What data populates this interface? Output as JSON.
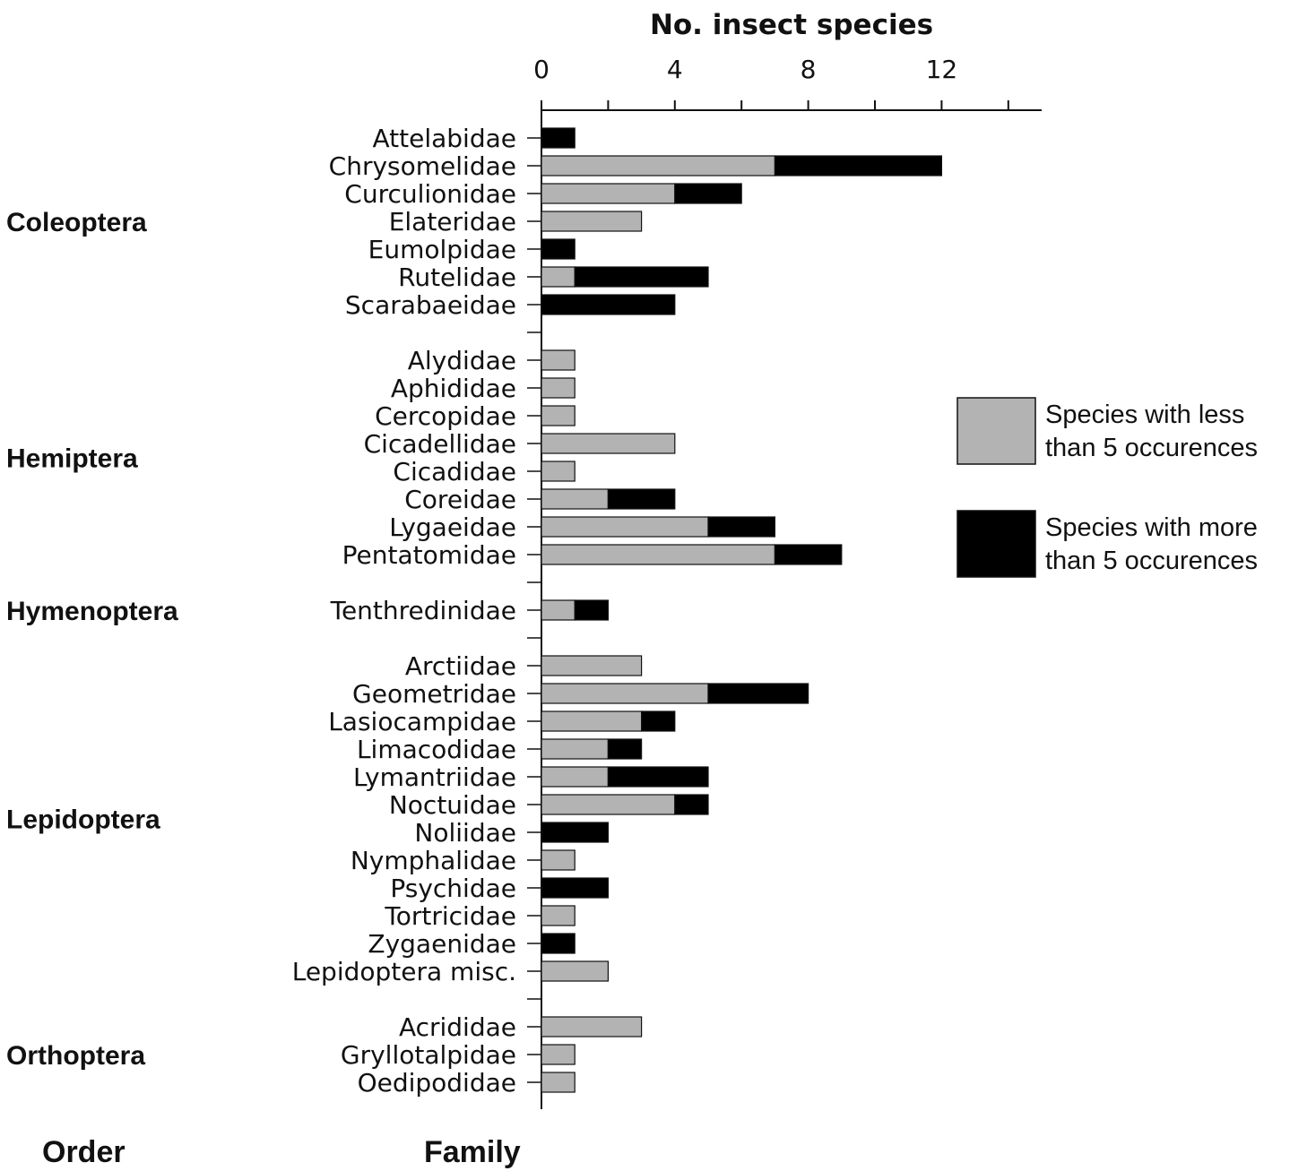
{
  "chart_data": {
    "type": "bar",
    "orientation": "horizontal",
    "stacked": true,
    "title": "No. insect species",
    "xticks": [
      0,
      4,
      8,
      12
    ],
    "xlim": [
      0,
      15
    ],
    "legend_position": "right",
    "footer_labels": {
      "order": "Order",
      "family": "Family"
    },
    "series": [
      {
        "name": "Species with less than 5 occurences",
        "legend_lines": [
          "Species with less",
          "than 5 occurences"
        ],
        "color": "#b3b3b3"
      },
      {
        "name": "Species with more than 5 occurences",
        "legend_lines": [
          "Species with more",
          "than 5 occurences"
        ],
        "color": "#000000"
      }
    ],
    "groups": [
      {
        "order": "Coleoptera",
        "families": [
          {
            "name": "Attelabidae",
            "less": 0,
            "more": 1
          },
          {
            "name": "Chrysomelidae",
            "less": 7,
            "more": 5
          },
          {
            "name": "Curculionidae",
            "less": 4,
            "more": 2
          },
          {
            "name": "Elateridae",
            "less": 3,
            "more": 0
          },
          {
            "name": "Eumolpidae",
            "less": 0,
            "more": 1
          },
          {
            "name": "Rutelidae",
            "less": 1,
            "more": 4
          },
          {
            "name": "Scarabaeidae",
            "less": 0,
            "more": 4
          }
        ]
      },
      {
        "order": "Hemiptera",
        "families": [
          {
            "name": "Alydidae",
            "less": 1,
            "more": 0
          },
          {
            "name": "Aphididae",
            "less": 1,
            "more": 0
          },
          {
            "name": "Cercopidae",
            "less": 1,
            "more": 0
          },
          {
            "name": "Cicadellidae",
            "less": 4,
            "more": 0
          },
          {
            "name": "Cicadidae",
            "less": 1,
            "more": 0
          },
          {
            "name": "Coreidae",
            "less": 2,
            "more": 2
          },
          {
            "name": "Lygaeidae",
            "less": 5,
            "more": 2
          },
          {
            "name": "Pentatomidae",
            "less": 7,
            "more": 2
          }
        ]
      },
      {
        "order": "Hymenoptera",
        "families": [
          {
            "name": "Tenthredinidae",
            "less": 1,
            "more": 1
          }
        ]
      },
      {
        "order": "Lepidoptera",
        "families": [
          {
            "name": "Arctiidae",
            "less": 3,
            "more": 0
          },
          {
            "name": "Geometridae",
            "less": 5,
            "more": 3
          },
          {
            "name": "Lasiocampidae",
            "less": 3,
            "more": 1
          },
          {
            "name": "Limacodidae",
            "less": 2,
            "more": 1
          },
          {
            "name": "Lymantriidae",
            "less": 2,
            "more": 3
          },
          {
            "name": "Noctuidae",
            "less": 4,
            "more": 1
          },
          {
            "name": "Noliidae",
            "less": 0,
            "more": 2
          },
          {
            "name": "Nymphalidae",
            "less": 1,
            "more": 0
          },
          {
            "name": "Psychidae",
            "less": 0,
            "more": 2
          },
          {
            "name": "Tortricidae",
            "less": 1,
            "more": 0
          },
          {
            "name": "Zygaenidae",
            "less": 0,
            "more": 1
          },
          {
            "name": "Lepidoptera misc.",
            "less": 2,
            "more": 0
          }
        ]
      },
      {
        "order": "Orthoptera",
        "families": [
          {
            "name": "Acrididae",
            "less": 3,
            "more": 0
          },
          {
            "name": "Gryllotalpidae",
            "less": 1,
            "more": 0
          },
          {
            "name": "Oedipodidae",
            "less": 1,
            "more": 0
          }
        ]
      }
    ]
  }
}
